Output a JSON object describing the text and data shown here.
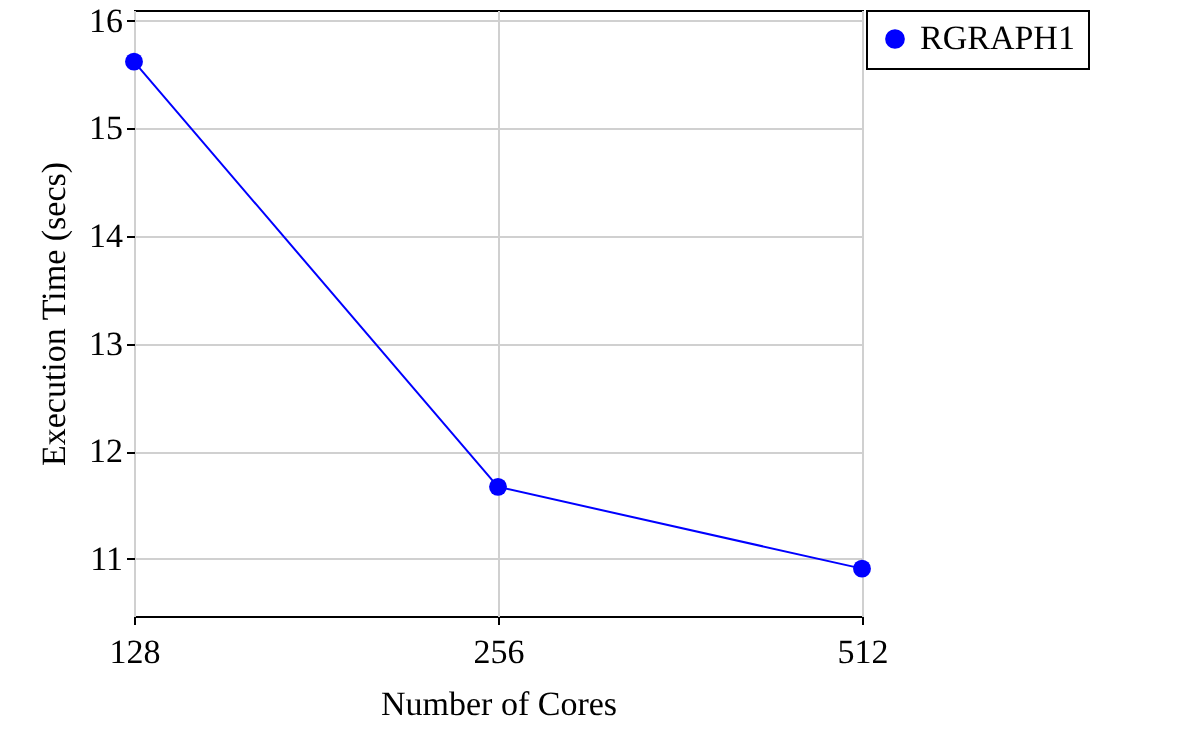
{
  "chart_data": {
    "type": "line",
    "xlabel": "Number of Cores",
    "ylabel": "Execution Time (secs)",
    "categories": [
      "128",
      "256",
      "512"
    ],
    "series": [
      {
        "name": "RGRAPH1",
        "color": "#0000ff",
        "values": [
          15.62,
          11.67,
          10.91
        ]
      }
    ],
    "ylim": [
      10.47,
      16.1
    ],
    "yticks": [
      11,
      12,
      13,
      14,
      15,
      16
    ],
    "grid": true,
    "legend": "top right",
    "marker": "circle",
    "line_style": "solid"
  }
}
